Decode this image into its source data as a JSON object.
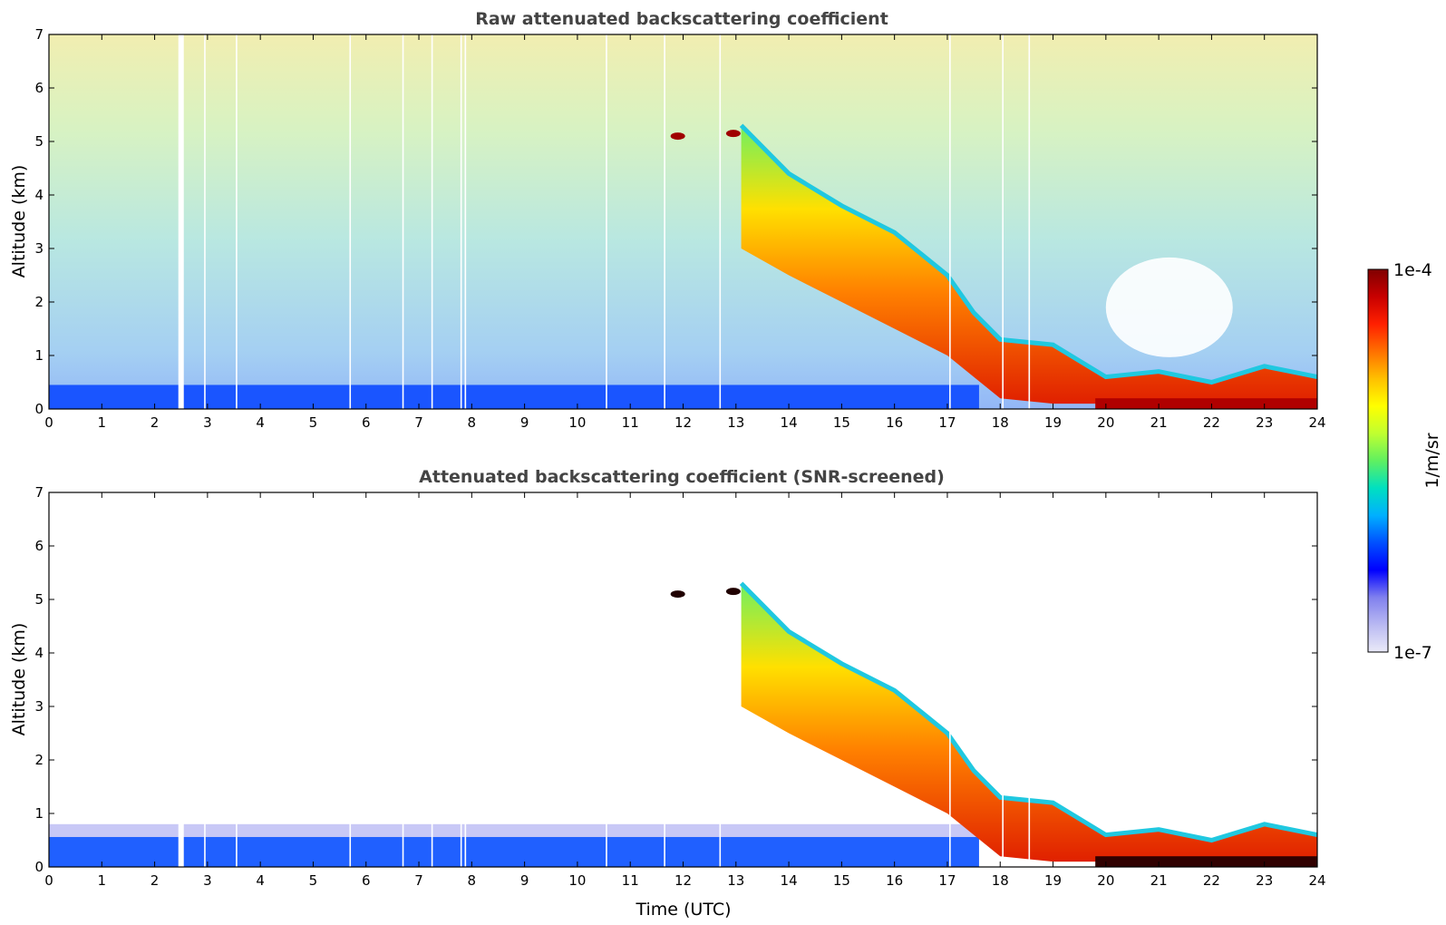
{
  "chart_data": [
    {
      "type": "heatmap",
      "title": "Raw attenuated backscattering coefficient",
      "xlabel": "",
      "ylabel": "Altitude (km)",
      "xlim": [
        0,
        24
      ],
      "ylim": [
        0,
        7
      ],
      "xticks": [
        0,
        1,
        2,
        3,
        4,
        5,
        6,
        7,
        8,
        9,
        10,
        11,
        12,
        13,
        14,
        15,
        16,
        17,
        18,
        19,
        20,
        21,
        22,
        23,
        24
      ],
      "yticks": [
        0,
        1,
        2,
        3,
        4,
        5,
        6,
        7
      ],
      "boundary_layer_top_km": 0.45,
      "cloud_base_profile": {
        "time_utc": [
          13.1,
          14,
          15,
          16,
          17,
          17.5,
          18,
          19,
          20,
          21,
          22,
          23,
          24
        ],
        "altitude_km": [
          3.0,
          2.5,
          2.0,
          1.5,
          1.0,
          0.6,
          0.2,
          0.1,
          0.1,
          0.1,
          0.1,
          0.1,
          0.1
        ]
      },
      "cloud_top_profile": {
        "time_utc": [
          13.1,
          14,
          15,
          16,
          17,
          17.5,
          18,
          19,
          20,
          21,
          22,
          23,
          24
        ],
        "altitude_km": [
          5.3,
          4.4,
          3.8,
          3.3,
          2.5,
          1.8,
          1.3,
          1.2,
          0.6,
          0.7,
          0.5,
          0.8,
          0.6
        ]
      },
      "isolated_clouds": [
        {
          "time_utc": 11.9,
          "altitude_km": 5.1
        },
        {
          "time_utc": 12.95,
          "altitude_km": 5.15
        }
      ],
      "data_gaps_utc": [
        2.5,
        2.95,
        3.55,
        5.7,
        6.7,
        7.25,
        7.8,
        7.88,
        10.55,
        11.65,
        12.7,
        17.05,
        18.05,
        18.55
      ]
    },
    {
      "type": "heatmap",
      "title": "Attenuated backscattering coefficient (SNR-screened)",
      "xlabel": "Time (UTC)",
      "ylabel": "Altitude (km)",
      "xlim": [
        0,
        24
      ],
      "ylim": [
        0,
        7
      ],
      "xticks": [
        0,
        1,
        2,
        3,
        4,
        5,
        6,
        7,
        8,
        9,
        10,
        11,
        12,
        13,
        14,
        15,
        16,
        17,
        18,
        19,
        20,
        21,
        22,
        23,
        24
      ],
      "yticks": [
        0,
        1,
        2,
        3,
        4,
        5,
        6,
        7
      ],
      "boundary_layer_top_km": 0.8,
      "cloud_base_profile": {
        "time_utc": [
          13.1,
          14,
          15,
          16,
          17,
          17.5,
          18,
          19,
          20,
          21,
          22,
          23,
          24
        ],
        "altitude_km": [
          3.0,
          2.5,
          2.0,
          1.5,
          1.0,
          0.6,
          0.2,
          0.1,
          0.1,
          0.1,
          0.1,
          0.1,
          0.1
        ]
      },
      "cloud_top_profile": {
        "time_utc": [
          13.1,
          14,
          15,
          16,
          17,
          17.5,
          18,
          19,
          20,
          21,
          22,
          23,
          24
        ],
        "altitude_km": [
          5.3,
          4.4,
          3.8,
          3.3,
          2.5,
          1.8,
          1.3,
          1.2,
          0.6,
          0.7,
          0.5,
          0.8,
          0.6
        ]
      },
      "isolated_clouds": [
        {
          "time_utc": 11.9,
          "altitude_km": 5.1
        },
        {
          "time_utc": 12.95,
          "altitude_km": 5.15
        }
      ],
      "data_gaps_utc": [
        2.5,
        2.95,
        3.55,
        5.7,
        6.7,
        7.25,
        7.8,
        7.88,
        10.55,
        11.65,
        12.7,
        17.05,
        18.05,
        18.55
      ]
    }
  ],
  "colorbar": {
    "label": "1/m/sr",
    "max_label": "1e-4",
    "min_label": "1e-7",
    "colors": [
      "#eaeaf8",
      "#b9b9f2",
      "#8080ee",
      "#0000ff",
      "#0050ff",
      "#00b0ff",
      "#00e0c0",
      "#60f060",
      "#c0ff30",
      "#ffff00",
      "#ffc000",
      "#ff7000",
      "#ff2000",
      "#c80000",
      "#800000"
    ]
  }
}
